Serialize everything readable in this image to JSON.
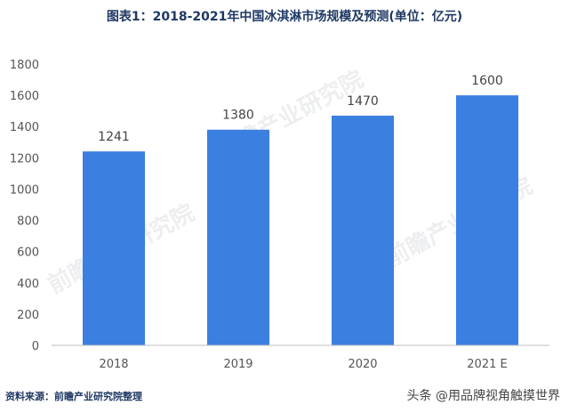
{
  "chart_data": {
    "type": "bar",
    "title": "图表1：2018-2021年中国冰淇淋市场规模及预测(单位：亿元)",
    "categories": [
      "2018",
      "2019",
      "2020",
      "2021 E"
    ],
    "values": [
      1241,
      1380,
      1470,
      1600
    ],
    "data_labels": [
      "1241",
      "1380",
      "1470",
      "1600"
    ],
    "ylim": [
      0,
      1800
    ],
    "yticks": [
      "0",
      "200",
      "400",
      "600",
      "800",
      "1000",
      "1200",
      "1400",
      "1600",
      "1800"
    ],
    "bar_color": "#3b7fe0",
    "grid": false,
    "legend": "none"
  },
  "footer": {
    "source": "资料来源：前瞻产业研究院整理",
    "watermark": "头条 @用品牌视角触摸世界"
  },
  "watermark_brand": "前瞻产业研究院"
}
